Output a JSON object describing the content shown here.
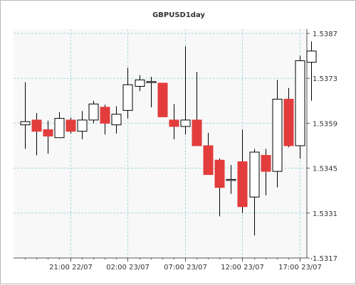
{
  "chart_data": {
    "type": "candlestick",
    "title": "GBPUSD1day",
    "xlabel": "",
    "ylabel": "",
    "ylim": [
      1.5317,
      1.5387
    ],
    "yticks": [
      "1.5387",
      "1.5373",
      "1.5359",
      "1.5345",
      "1.5331",
      "1.5317"
    ],
    "xticks": [
      "21:00 22/07",
      "02:00 23/07",
      "07:00 23/07",
      "12:00 23/07",
      "17:00 23/07"
    ],
    "grid": true,
    "colors": {
      "up": "#ffffff",
      "down": "#e23c3c",
      "outline": "#000000",
      "grid": "#a8d8dc",
      "plot_bg": "#f8f8f8"
    },
    "candles": [
      {
        "o": 1.53585,
        "h": 1.53718,
        "l": 1.5351,
        "c": 1.53595
      },
      {
        "o": 1.536,
        "h": 1.53622,
        "l": 1.5349,
        "c": 1.53565
      },
      {
        "o": 1.5357,
        "h": 1.53598,
        "l": 1.53495,
        "c": 1.5355
      },
      {
        "o": 1.53545,
        "h": 1.53625,
        "l": 1.53545,
        "c": 1.53605
      },
      {
        "o": 1.536,
        "h": 1.53608,
        "l": 1.53558,
        "c": 1.53565
      },
      {
        "o": 1.53565,
        "h": 1.53628,
        "l": 1.5354,
        "c": 1.536
      },
      {
        "o": 1.536,
        "h": 1.5366,
        "l": 1.5359,
        "c": 1.5365
      },
      {
        "o": 1.5364,
        "h": 1.53648,
        "l": 1.53555,
        "c": 1.5359
      },
      {
        "o": 1.53585,
        "h": 1.53643,
        "l": 1.53558,
        "c": 1.53618
      },
      {
        "o": 1.5363,
        "h": 1.53763,
        "l": 1.53605,
        "c": 1.5371
      },
      {
        "o": 1.53705,
        "h": 1.5374,
        "l": 1.5369,
        "c": 1.53725
      },
      {
        "o": 1.5372,
        "h": 1.53735,
        "l": 1.5364,
        "c": 1.5372
      },
      {
        "o": 1.53715,
        "h": 1.53715,
        "l": 1.5361,
        "c": 1.5361
      },
      {
        "o": 1.536,
        "h": 1.5365,
        "l": 1.5354,
        "c": 1.5358
      },
      {
        "o": 1.5358,
        "h": 1.5383,
        "l": 1.53555,
        "c": 1.536
      },
      {
        "o": 1.536,
        "h": 1.5375,
        "l": 1.5352,
        "c": 1.5352
      },
      {
        "o": 1.5352,
        "h": 1.5356,
        "l": 1.5343,
        "c": 1.5343
      },
      {
        "o": 1.53475,
        "h": 1.5348,
        "l": 1.533,
        "c": 1.5339
      },
      {
        "o": 1.53415,
        "h": 1.5346,
        "l": 1.5337,
        "c": 1.53415
      },
      {
        "o": 1.5347,
        "h": 1.5357,
        "l": 1.5331,
        "c": 1.5333
      },
      {
        "o": 1.5336,
        "h": 1.5351,
        "l": 1.5324,
        "c": 1.535
      },
      {
        "o": 1.5349,
        "h": 1.5351,
        "l": 1.53365,
        "c": 1.5344
      },
      {
        "o": 1.5344,
        "h": 1.53725,
        "l": 1.5339,
        "c": 1.53665
      },
      {
        "o": 1.53665,
        "h": 1.537,
        "l": 1.53515,
        "c": 1.5352
      },
      {
        "o": 1.5352,
        "h": 1.538,
        "l": 1.5348,
        "c": 1.53785
      },
      {
        "o": 1.5378,
        "h": 1.53845,
        "l": 1.5366,
        "c": 1.53815
      }
    ]
  }
}
